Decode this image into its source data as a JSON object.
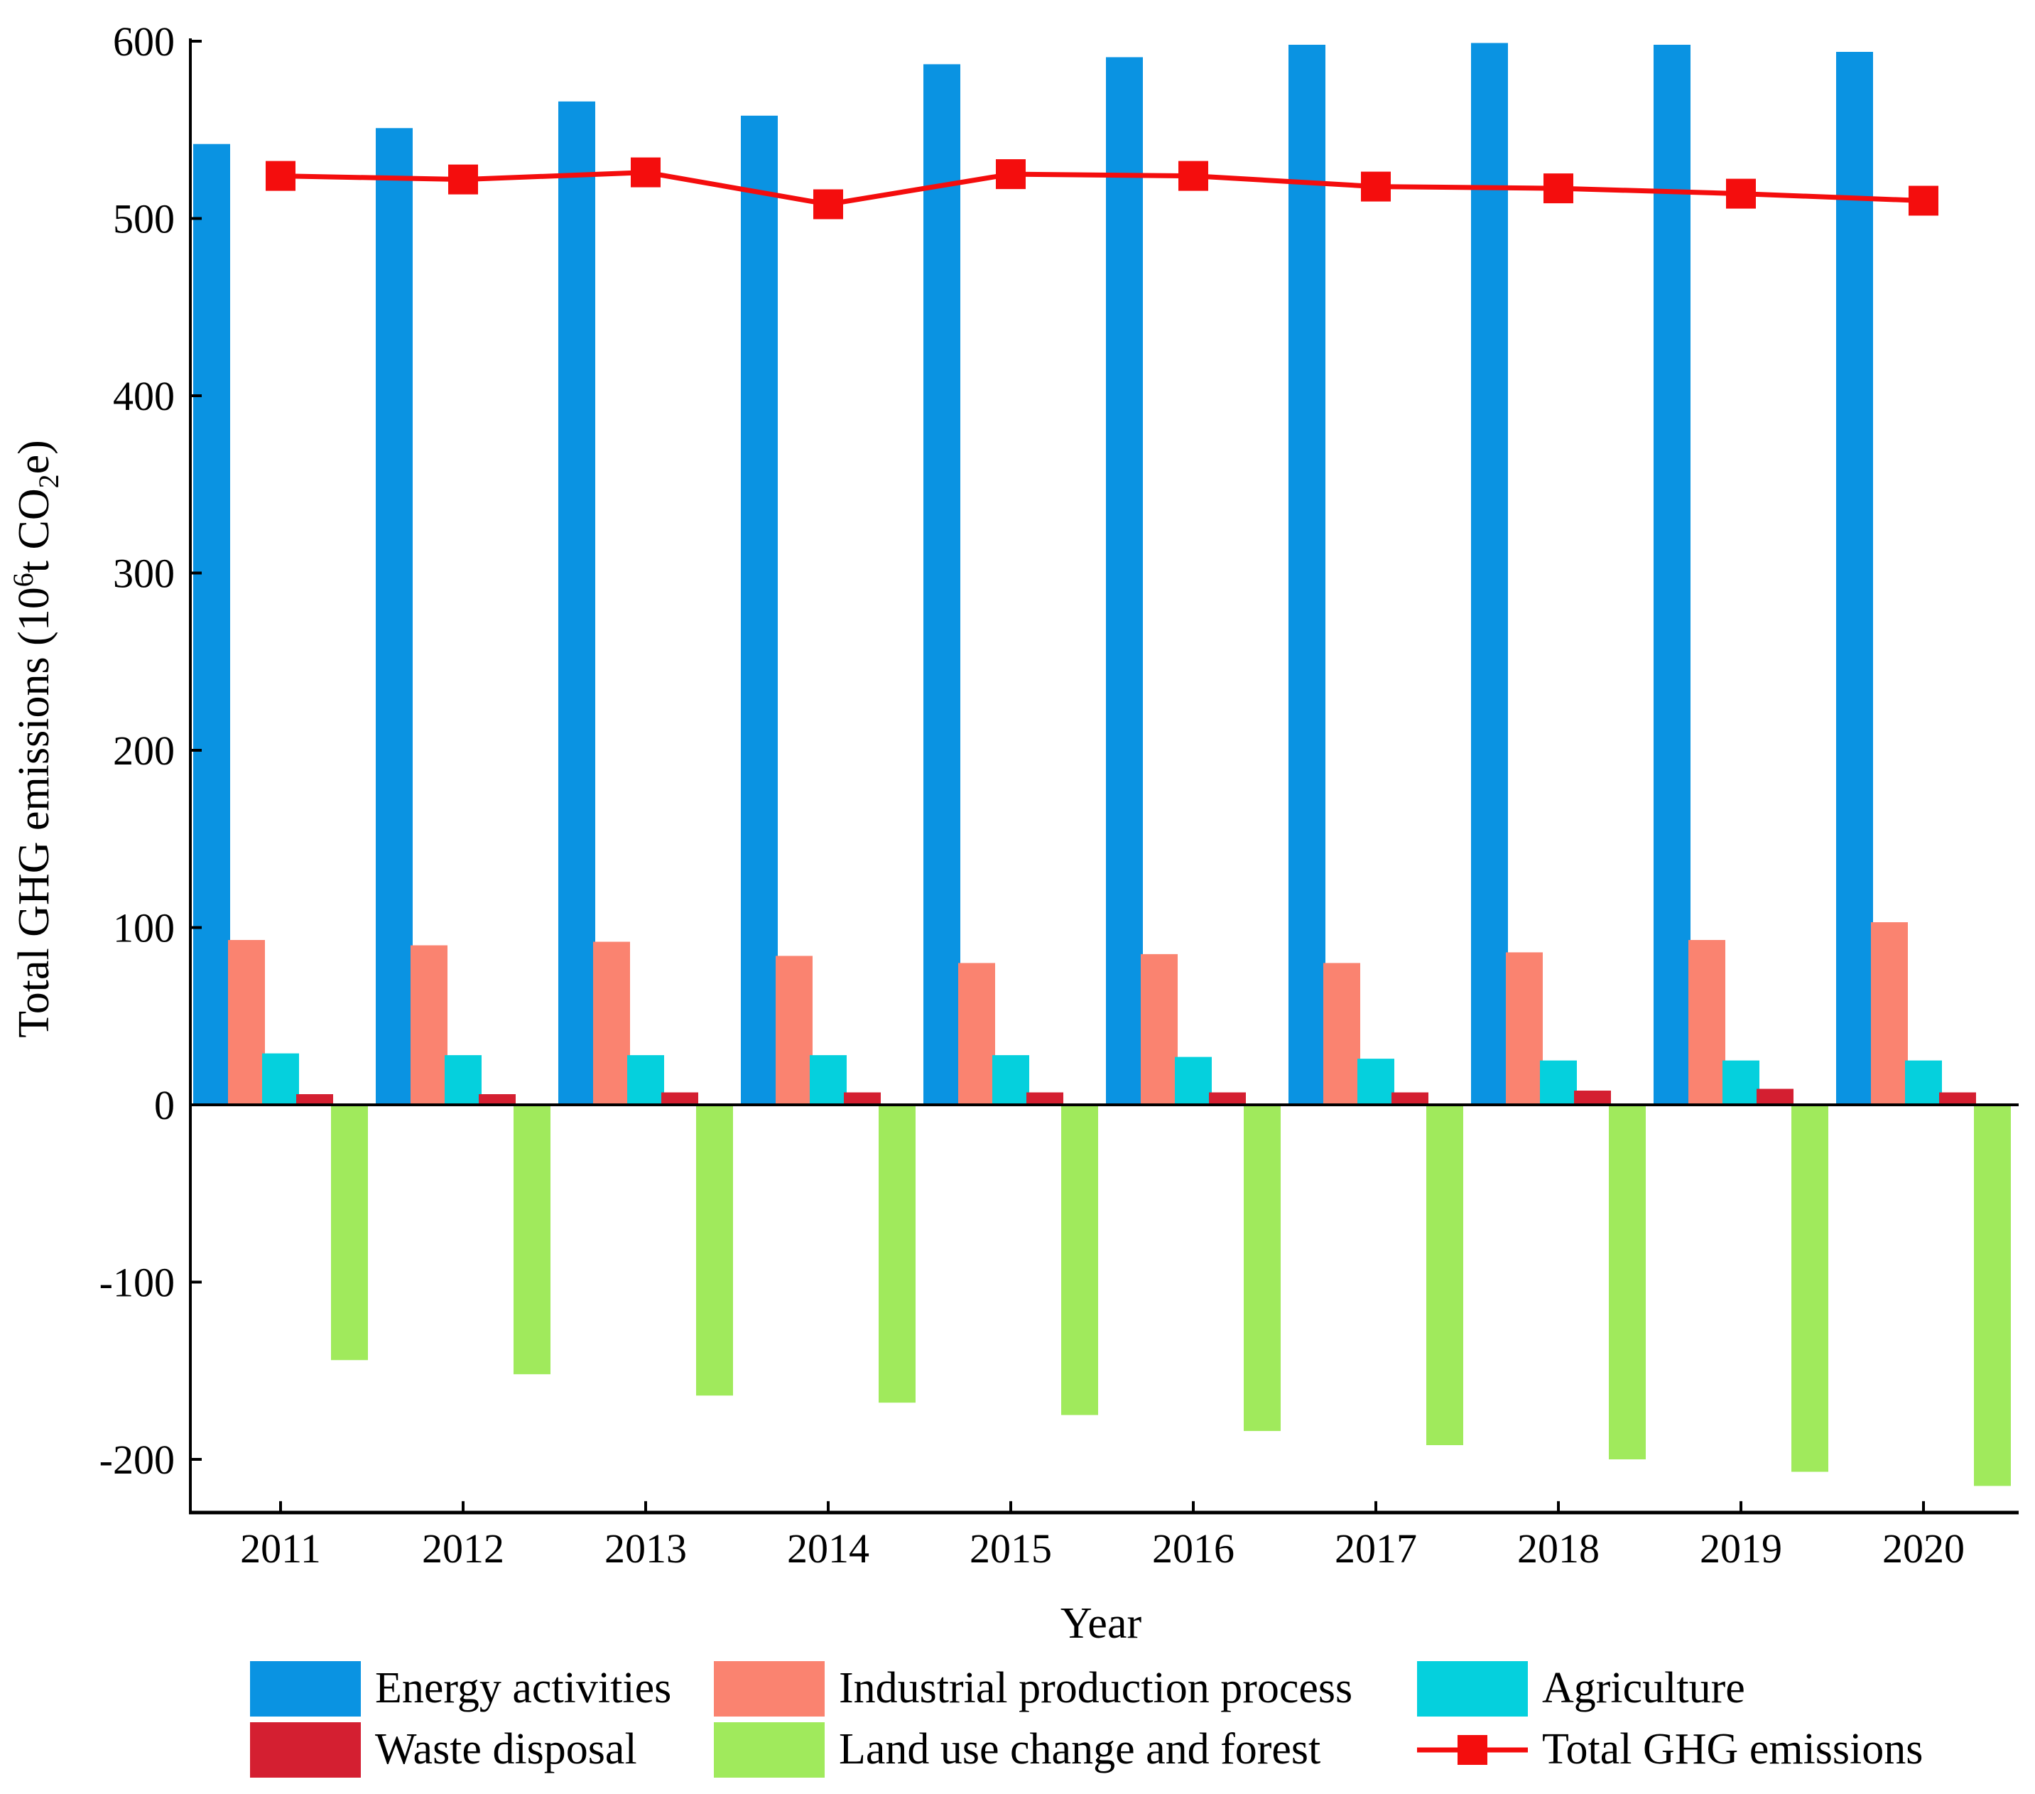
{
  "chart_data": {
    "type": "bar",
    "xlabel": "Year",
    "ylabel": "Total GHG emissions (10",
    "ylabel_sup": "6",
    "ylabel_mid": "t CO",
    "ylabel_sub": "2",
    "ylabel_end": "e)",
    "ylim": [
      -230,
      600
    ],
    "yticks": [
      600,
      500,
      400,
      300,
      200,
      100,
      0,
      -100,
      -200
    ],
    "categories": [
      "2011",
      "2012",
      "2013",
      "2014",
      "2015",
      "2016",
      "2017",
      "2018",
      "2019",
      "2020"
    ],
    "series": [
      {
        "name": "Energy activities",
        "kind": "bar",
        "color": "#0a93e2",
        "values": [
          542,
          551,
          566,
          558,
          587,
          591,
          598,
          599,
          598,
          594
        ]
      },
      {
        "name": "Industrial production process",
        "kind": "bar",
        "color": "#fa8370",
        "values": [
          93,
          90,
          92,
          84,
          80,
          85,
          80,
          86,
          93,
          103
        ]
      },
      {
        "name": "Agriculture",
        "kind": "bar",
        "color": "#05d0dd",
        "values": [
          29,
          28,
          28,
          28,
          28,
          27,
          26,
          25,
          25,
          25
        ]
      },
      {
        "name": "Waste disposal",
        "kind": "bar",
        "color": "#d41f31",
        "values": [
          6,
          6,
          7,
          7,
          7,
          7,
          7,
          8,
          9,
          7
        ]
      },
      {
        "name": "Land use change and forest",
        "kind": "bar",
        "color": "#a0ea5c",
        "values": [
          -144,
          -152,
          -164,
          -168,
          -175,
          -184,
          -192,
          -200,
          -207,
          -215
        ]
      },
      {
        "name": "Total GHG emissions",
        "kind": "line",
        "color": "#f40d0d",
        "values": [
          524,
          522,
          526,
          508,
          525,
          524,
          518,
          517,
          514,
          510
        ]
      }
    ],
    "legend_position": "bottom",
    "grid": false
  }
}
